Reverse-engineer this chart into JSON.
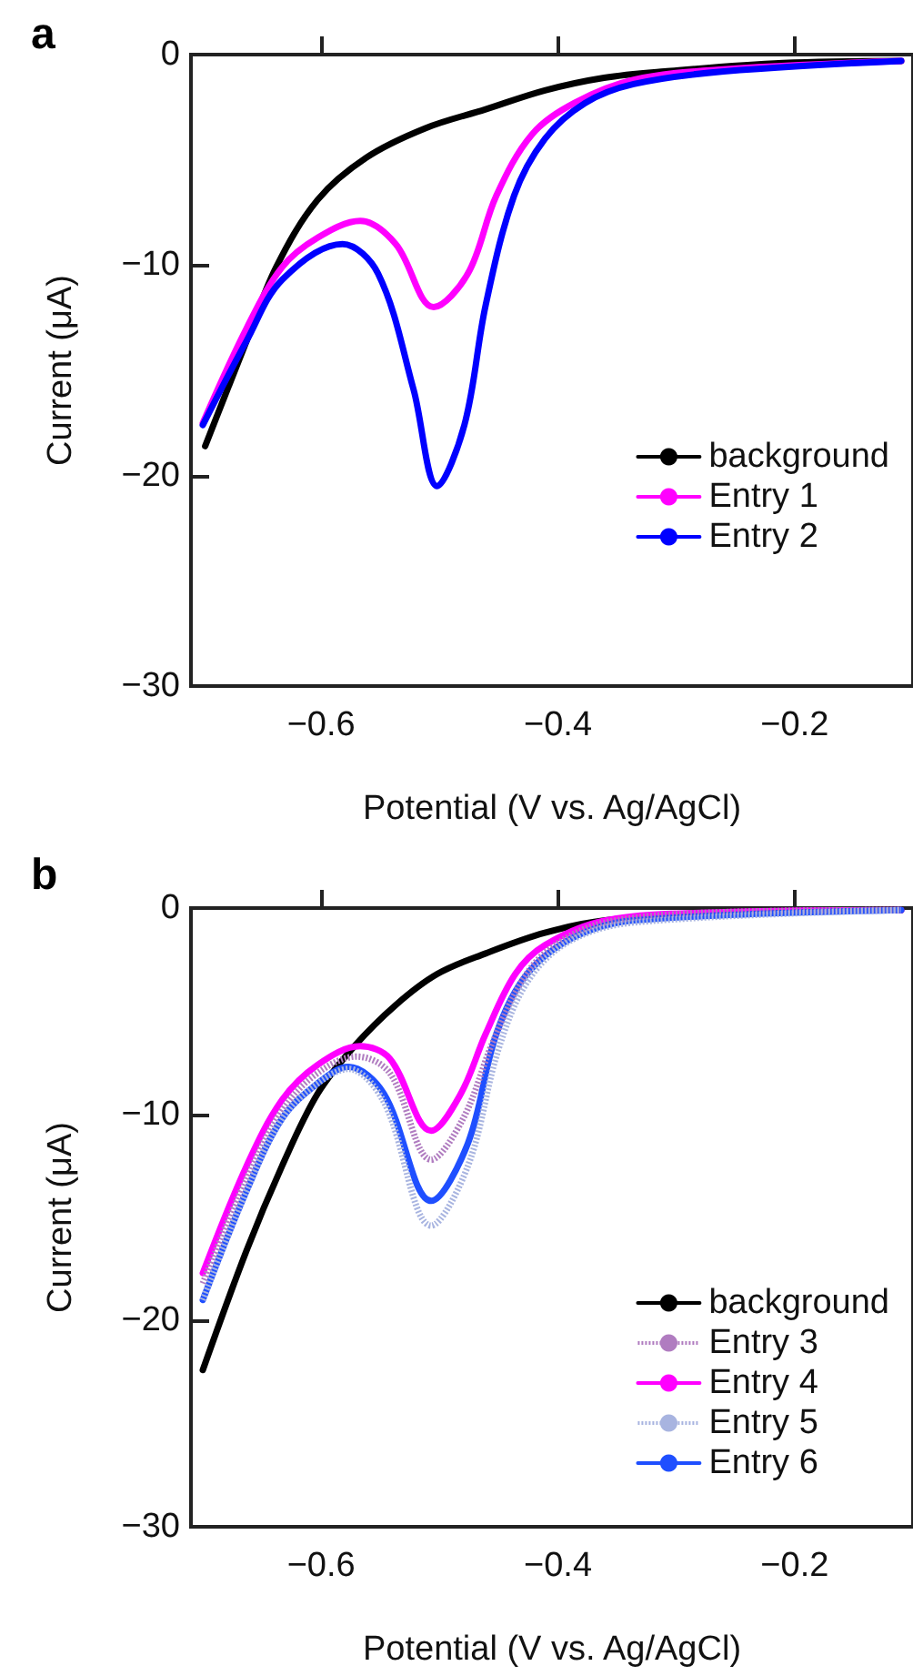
{
  "chart_data": [
    {
      "type": "line",
      "title": "a",
      "xlabel": "Potential (V vs. Ag/AgCl)",
      "ylabel": "Current (μA)",
      "xlim": [
        -0.71,
        -0.1
      ],
      "xticks": [
        -0.6,
        -0.4,
        -0.2
      ],
      "ylim": [
        -30,
        0
      ],
      "yticks": [
        -30,
        -20,
        -10,
        0
      ],
      "grid": false,
      "legend": "bottom right",
      "marker": "none",
      "series": [
        {
          "name": "background",
          "color": "#000000",
          "line_style": "solid",
          "x": [
            -0.698,
            -0.663,
            -0.638,
            -0.603,
            -0.562,
            -0.512,
            -0.461,
            -0.411,
            -0.361,
            -0.31,
            -0.21,
            -0.11
          ],
          "values": [
            -18.6,
            -13.6,
            -10.1,
            -6.9,
            -4.9,
            -3.5,
            -2.6,
            -1.7,
            -1.1,
            -0.8,
            -0.4,
            -0.3
          ]
        },
        {
          "name": "Entry 1",
          "color": "#ff00ff",
          "line_style": "solid",
          "x": [
            -0.7,
            -0.663,
            -0.633,
            -0.603,
            -0.567,
            -0.537,
            -0.505,
            -0.476,
            -0.452,
            -0.422,
            -0.386,
            -0.336,
            -0.26,
            -0.11
          ],
          "values": [
            -17.5,
            -13.0,
            -10.1,
            -8.7,
            -7.9,
            -9.0,
            -12.0,
            -10.4,
            -6.7,
            -3.8,
            -2.3,
            -1.2,
            -0.7,
            -0.3
          ]
        },
        {
          "name": "Entry 2",
          "color": "#0000ff",
          "line_style": "solid",
          "x": [
            -0.7,
            -0.663,
            -0.633,
            -0.582,
            -0.552,
            -0.522,
            -0.502,
            -0.479,
            -0.461,
            -0.437,
            -0.411,
            -0.377,
            -0.336,
            -0.26,
            -0.11
          ],
          "values": [
            -17.6,
            -13.6,
            -10.7,
            -9.0,
            -10.4,
            -15.9,
            -20.5,
            -17.6,
            -11.9,
            -6.7,
            -4.0,
            -2.3,
            -1.4,
            -0.8,
            -0.3
          ]
        }
      ]
    },
    {
      "type": "line",
      "title": "b",
      "xlabel": "Potential (V vs. Ag/AgCl)",
      "ylabel": "Current (μA)",
      "xlim": [
        -0.71,
        -0.1
      ],
      "xticks": [
        -0.6,
        -0.4,
        -0.2
      ],
      "ylim": [
        -30,
        0
      ],
      "yticks": [
        -30,
        -20,
        -10,
        0
      ],
      "grid": false,
      "legend": "bottom right",
      "marker": "none",
      "series": [
        {
          "name": "background",
          "color": "#000000",
          "line_style": "solid",
          "x": [
            -0.7,
            -0.663,
            -0.633,
            -0.603,
            -0.572,
            -0.537,
            -0.502,
            -0.461,
            -0.411,
            -0.36,
            -0.26,
            -0.11
          ],
          "values": [
            -22.4,
            -16.6,
            -12.5,
            -9.0,
            -6.7,
            -4.7,
            -3.2,
            -2.2,
            -1.2,
            -0.6,
            -0.2,
            -0.1
          ]
        },
        {
          "name": "Entry 3",
          "color": "#b07cc0",
          "line_style": "dotted",
          "x": [
            -0.7,
            -0.663,
            -0.633,
            -0.603,
            -0.57,
            -0.542,
            -0.507,
            -0.48,
            -0.455,
            -0.43,
            -0.405,
            -0.36,
            -0.26,
            -0.11
          ],
          "values": [
            -18.2,
            -13.1,
            -9.8,
            -8.0,
            -7.2,
            -8.0,
            -12.2,
            -10.2,
            -6.5,
            -3.5,
            -1.9,
            -0.7,
            -0.2,
            -0.1
          ]
        },
        {
          "name": "Entry 4",
          "color": "#ff00ff",
          "line_style": "solid",
          "x": [
            -0.7,
            -0.663,
            -0.633,
            -0.603,
            -0.567,
            -0.542,
            -0.507,
            -0.482,
            -0.461,
            -0.436,
            -0.411,
            -0.36,
            -0.26,
            -0.11
          ],
          "values": [
            -17.7,
            -12.5,
            -9.3,
            -7.6,
            -6.7,
            -7.3,
            -10.8,
            -9.0,
            -6.1,
            -3.2,
            -1.8,
            -0.6,
            -0.2,
            -0.1
          ]
        },
        {
          "name": "Entry 5",
          "color": "#a8b4e0",
          "line_style": "dotted",
          "x": [
            -0.7,
            -0.663,
            -0.633,
            -0.603,
            -0.577,
            -0.547,
            -0.507,
            -0.476,
            -0.45,
            -0.425,
            -0.39,
            -0.336,
            -0.11
          ],
          "values": [
            -19.0,
            -13.7,
            -10.2,
            -8.5,
            -7.8,
            -9.4,
            -15.4,
            -12.5,
            -6.8,
            -3.5,
            -1.6,
            -0.7,
            -0.1
          ]
        },
        {
          "name": "Entry 6",
          "color": "#1f4fff",
          "line_style": "solid",
          "x": [
            -0.7,
            -0.663,
            -0.633,
            -0.603,
            -0.577,
            -0.547,
            -0.507,
            -0.476,
            -0.452,
            -0.426,
            -0.386,
            -0.336,
            -0.11
          ],
          "values": [
            -19.0,
            -13.7,
            -10.2,
            -8.5,
            -7.7,
            -9.0,
            -14.2,
            -11.4,
            -6.1,
            -3.2,
            -1.4,
            -0.6,
            -0.1
          ]
        }
      ]
    }
  ]
}
